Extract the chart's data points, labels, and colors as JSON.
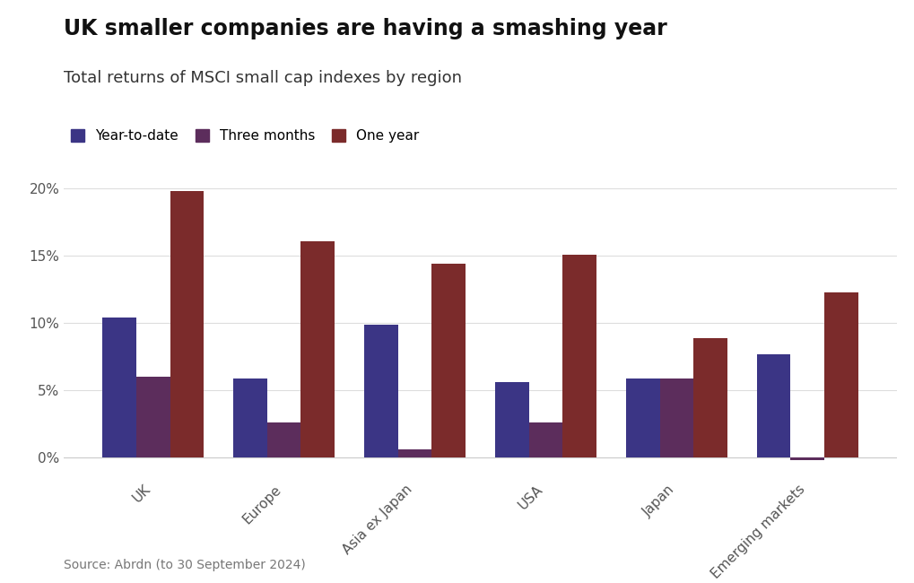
{
  "title": "UK smaller companies are having a smashing year",
  "subtitle": "Total returns of MSCI small cap indexes by region",
  "source": "Source: Abrdn (to 30 September 2024)",
  "categories": [
    "UK",
    "Europe",
    "Asia ex Japan",
    "USA",
    "Japan",
    "Emerging markets"
  ],
  "series": {
    "Year-to-date": [
      10.4,
      5.9,
      9.9,
      5.6,
      5.9,
      7.7
    ],
    "Three months": [
      6.0,
      2.6,
      0.6,
      2.6,
      5.9,
      -0.2
    ],
    "One year": [
      19.8,
      16.1,
      14.4,
      15.1,
      8.9,
      12.3
    ]
  },
  "colors": {
    "Year-to-date": "#3b3585",
    "Three months": "#5c2d5c",
    "One year": "#7b2b2b"
  },
  "ylim": [
    -1.5,
    21
  ],
  "yticks": [
    0,
    5,
    10,
    15,
    20
  ],
  "ytick_labels": [
    "0%",
    "5%",
    "10%",
    "15%",
    "20%"
  ],
  "bar_width": 0.26,
  "background_color": "#ffffff",
  "title_fontsize": 17,
  "subtitle_fontsize": 13,
  "legend_fontsize": 11,
  "tick_fontsize": 11,
  "source_fontsize": 10
}
